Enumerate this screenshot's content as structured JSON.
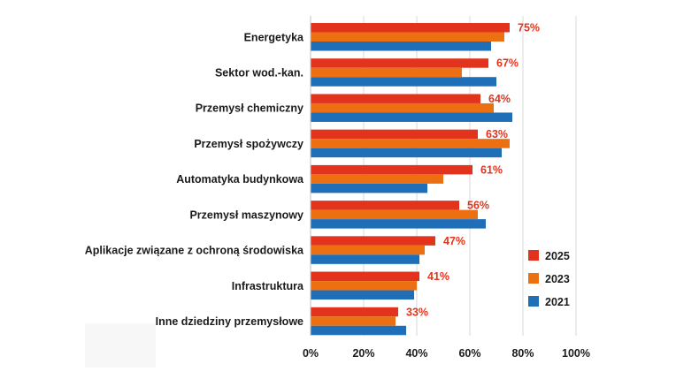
{
  "chart_data": {
    "type": "bar",
    "orientation": "horizontal",
    "categories": [
      "Energetyka",
      "Sektor wod.-kan.",
      "Przemysł chemiczny",
      "Przemysł spożywczy",
      "Automatyka budynkowa",
      "Przemysł maszynowy",
      "Aplikacje związane z ochroną środowiska",
      "Infrastruktura",
      "Inne dziedziny przemysłowe"
    ],
    "series": [
      {
        "name": "2025",
        "color": "#e2341d",
        "values": [
          75,
          67,
          64,
          63,
          61,
          56,
          47,
          41,
          33
        ]
      },
      {
        "name": "2023",
        "color": "#ec7012",
        "values": [
          73,
          57,
          69,
          75,
          50,
          63,
          43,
          40,
          32
        ]
      },
      {
        "name": "2021",
        "color": "#1e6fb8",
        "values": [
          68,
          70,
          76,
          72,
          44,
          66,
          41,
          39,
          36
        ]
      }
    ],
    "data_labels": [
      "75%",
      "67%",
      "64%",
      "63%",
      "61%",
      "56%",
      "47%",
      "41%",
      "33%"
    ],
    "data_label_color": "#e2341d",
    "xlim": [
      0,
      100
    ],
    "x_ticks": [
      0,
      20,
      40,
      60,
      80,
      100
    ],
    "x_tick_labels": [
      "0%",
      "20%",
      "40%",
      "60%",
      "80%",
      "100%"
    ],
    "grid": true,
    "legend_position": "right",
    "legend_order": [
      "2025",
      "2023",
      "2021"
    ],
    "title": "",
    "xlabel": "",
    "ylabel": ""
  }
}
